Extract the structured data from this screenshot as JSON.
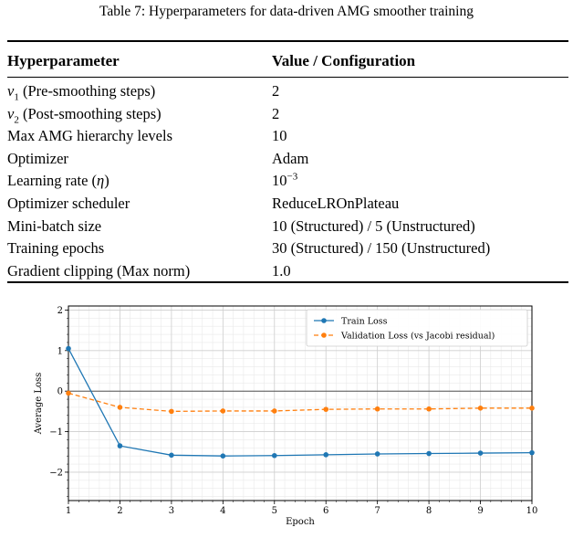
{
  "table": {
    "caption": "Table 7: Hyperparameters for data-driven AMG smoother training",
    "headers": [
      "Hyperparameter",
      "Value / Configuration"
    ],
    "rows": [
      {
        "param": "ν1 (Pre-smoothing steps)",
        "value": "2"
      },
      {
        "param": "ν2 (Post-smoothing steps)",
        "value": "2"
      },
      {
        "param": "Max AMG hierarchy levels",
        "value": "10"
      },
      {
        "param": "Optimizer",
        "value": "Adam"
      },
      {
        "param": "Learning rate (η)",
        "value": "10−3"
      },
      {
        "param": "Optimizer scheduler",
        "value": "ReduceLROnPlateau"
      },
      {
        "param": "Mini-batch size",
        "value": "10 (Structured) / 5 (Unstructured)"
      },
      {
        "param": "Training epochs",
        "value": "30 (Structured) / 150 (Unstructured)"
      },
      {
        "param": "Gradient clipping (Max norm)",
        "value": "1.0"
      }
    ]
  },
  "chart_data": {
    "type": "line",
    "xlabel": "Epoch",
    "ylabel": "Average Loss",
    "xlim": [
      1,
      10
    ],
    "ylim": [
      -2.7,
      2.1
    ],
    "x_ticks": [
      1,
      2,
      3,
      4,
      5,
      6,
      7,
      8,
      9,
      10
    ],
    "y_ticks": [
      2,
      1,
      0,
      -1,
      -2
    ],
    "y_tick_labels": [
      "2",
      "1",
      "0",
      "−1",
      "−2"
    ],
    "grid": true,
    "legend_position": "top-right",
    "x": [
      1,
      2,
      3,
      4,
      5,
      6,
      7,
      8,
      9,
      10
    ],
    "series": [
      {
        "name": "Train Loss",
        "color": "#1f77b4",
        "style": "solid",
        "marker": "circle",
        "values": [
          1.05,
          -1.35,
          -1.58,
          -1.6,
          -1.59,
          -1.57,
          -1.55,
          -1.54,
          -1.53,
          -1.52
        ]
      },
      {
        "name": "Validation Loss (vs Jacobi residual)",
        "color": "#ff7f0e",
        "style": "dashed",
        "marker": "circle",
        "values": [
          -0.05,
          -0.4,
          -0.5,
          -0.49,
          -0.49,
          -0.45,
          -0.44,
          -0.44,
          -0.42,
          -0.42
        ]
      }
    ]
  }
}
